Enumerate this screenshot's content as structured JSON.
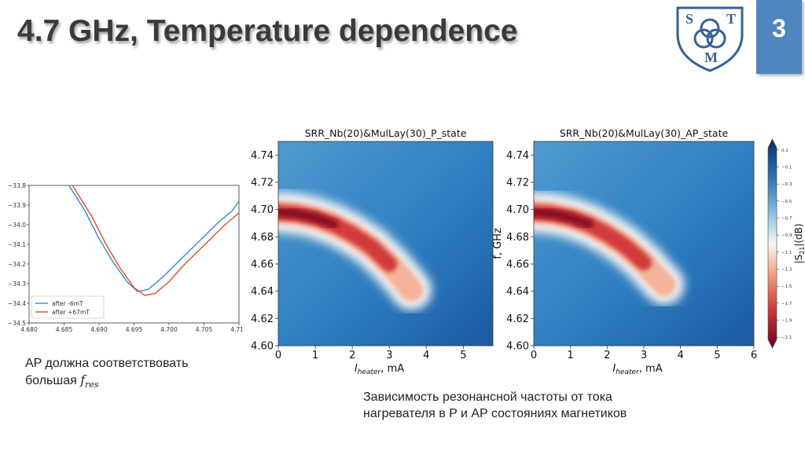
{
  "slide": {
    "title": "4.7 GHz, Temperature dependence",
    "page_number": "3",
    "logo": {
      "letters": [
        "S",
        "T",
        "M"
      ]
    }
  },
  "captions": {
    "left_line1": "AP должна соответствовать",
    "left_line2_prefix": "большая ",
    "left_symbol": "f",
    "left_symbol_sub": "res",
    "right_line1": "Зависимость резонансной частоты от тока",
    "right_line2": "нагревателя в P и AP состояниях магнетиков"
  },
  "chart_data": [
    {
      "type": "line",
      "title": "",
      "xlabel": "",
      "ylabel": "",
      "xlim": [
        4.68,
        4.71
      ],
      "ylim": [
        -34.5,
        -33.8
      ],
      "xticks": [
        "4.680",
        "4.685",
        "4.690",
        "4.695",
        "4.700",
        "4.705",
        "4.710"
      ],
      "yticks": [
        "-33.8",
        "-33.9",
        "-34.0",
        "-34.1",
        "-34.2",
        "-34.3",
        "-34.4",
        "-34.5"
      ],
      "legend_position": "lower-left",
      "series": [
        {
          "name": "after -6mT",
          "color": "#3a86c4",
          "x": [
            4.6857,
            4.688,
            4.69,
            4.692,
            4.694,
            4.6955,
            4.697,
            4.699,
            4.701,
            4.703,
            4.705,
            4.707,
            4.709,
            4.71
          ],
          "y": [
            -33.8,
            -33.93,
            -34.07,
            -34.19,
            -34.29,
            -34.34,
            -34.33,
            -34.27,
            -34.2,
            -34.13,
            -34.06,
            -33.99,
            -33.93,
            -33.88
          ]
        },
        {
          "name": "after +67mT",
          "color": "#e24a33",
          "x": [
            4.6862,
            4.689,
            4.691,
            4.693,
            4.695,
            4.6965,
            4.698,
            4.7,
            4.702,
            4.704,
            4.706,
            4.708,
            4.71
          ],
          "y": [
            -33.8,
            -33.96,
            -34.1,
            -34.22,
            -34.32,
            -34.36,
            -34.35,
            -34.29,
            -34.21,
            -34.14,
            -34.07,
            -34.0,
            -33.94
          ]
        }
      ]
    },
    {
      "type": "heatmap",
      "title": "SRR_Nb(20)&MulLay(30)_P_state",
      "xlabel_main": "I",
      "xlabel_sub": "heater",
      "xlabel_unit": ", mA",
      "ylabel": "f, GHz",
      "xlim": [
        0,
        5.8
      ],
      "ylim": [
        4.6,
        4.75
      ],
      "xticks": [
        "0",
        "1",
        "2",
        "3",
        "4",
        "5"
      ],
      "yticks": [
        "4.60",
        "4.62",
        "4.64",
        "4.66",
        "4.68",
        "4.70",
        "4.72",
        "4.74"
      ],
      "resonance_curve": {
        "current_mA": [
          0,
          0.5,
          1.0,
          1.5,
          2.0,
          2.5,
          3.0,
          3.3,
          3.6
        ],
        "frequency_GHz": [
          4.698,
          4.697,
          4.694,
          4.689,
          4.682,
          4.673,
          4.66,
          4.651,
          4.641
        ]
      }
    },
    {
      "type": "heatmap",
      "title": "SRR_Nb(20)&MulLay(30)_AP_state",
      "xlabel_main": "I",
      "xlabel_sub": "heater",
      "xlabel_unit": ", mA",
      "ylabel": "f, GHz",
      "xlim": [
        0,
        6
      ],
      "ylim": [
        4.6,
        4.75
      ],
      "xticks": [
        "0",
        "1",
        "2",
        "3",
        "4",
        "5",
        "6"
      ],
      "yticks": [
        "4.60",
        "4.62",
        "4.64",
        "4.66",
        "4.68",
        "4.70",
        "4.72",
        "4.74"
      ],
      "resonance_curve": {
        "current_mA": [
          0,
          0.5,
          1.0,
          1.5,
          2.0,
          2.5,
          3.0,
          3.3,
          3.55
        ],
        "frequency_GHz": [
          4.698,
          4.697,
          4.694,
          4.689,
          4.682,
          4.673,
          4.661,
          4.652,
          4.645
        ]
      }
    }
  ],
  "colorbar": {
    "label_prefix": "|S",
    "label_sub": "21",
    "label_suffix": "|(dB)",
    "range": [
      -2.2,
      0.2
    ],
    "ticks": [
      "0.1",
      "-0.1",
      "-0.3",
      "-0.5",
      "-0.7",
      "-0.9",
      "-1.1",
      "-1.3",
      "-1.5",
      "-1.7",
      "-1.9",
      "-2.1"
    ],
    "colors": {
      "high": "#08306b",
      "mid": "#f7f7f7",
      "low": "#67001f"
    }
  }
}
